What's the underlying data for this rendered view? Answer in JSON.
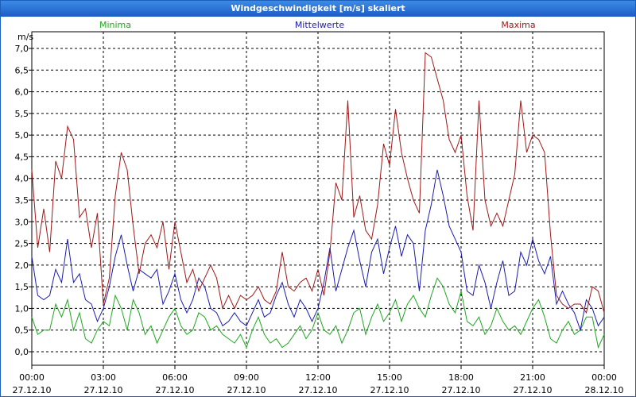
{
  "chart_data": {
    "type": "line",
    "title": "Windgeschwindigkeit [m/s] skaliert",
    "ylabel": "m/s",
    "ylim": [
      0,
      7
    ],
    "yticks": [
      "0,0",
      "0,5",
      "1,0",
      "1,5",
      "2,0",
      "2,5",
      "3,0",
      "3,5",
      "4,0",
      "4,5",
      "5,0",
      "5,5",
      "6,0",
      "6,5",
      "7,0"
    ],
    "xticks": [
      {
        "time": "00:00",
        "date": "27.12.10"
      },
      {
        "time": "03:00",
        "date": "27.12.10"
      },
      {
        "time": "06:00",
        "date": "27.12.10"
      },
      {
        "time": "09:00",
        "date": "27.12.10"
      },
      {
        "time": "12:00",
        "date": "27.12.10"
      },
      {
        "time": "15:00",
        "date": "27.12.10"
      },
      {
        "time": "18:00",
        "date": "27.12.10"
      },
      {
        "time": "21:00",
        "date": "27.12.10"
      },
      {
        "time": "00:00",
        "date": "28.12.10"
      }
    ],
    "x_hours": [
      0,
      0.25,
      0.5,
      0.75,
      1,
      1.25,
      1.5,
      1.75,
      2,
      2.25,
      2.5,
      2.75,
      3,
      3.25,
      3.5,
      3.75,
      4,
      4.25,
      4.5,
      4.75,
      5,
      5.25,
      5.5,
      5.75,
      6,
      6.25,
      6.5,
      6.75,
      7,
      7.25,
      7.5,
      7.75,
      8,
      8.25,
      8.5,
      8.75,
      9,
      9.25,
      9.5,
      9.75,
      10,
      10.25,
      10.5,
      10.75,
      11,
      11.25,
      11.5,
      11.75,
      12,
      12.25,
      12.5,
      12.75,
      13,
      13.25,
      13.5,
      13.75,
      14,
      14.25,
      14.5,
      14.75,
      15,
      15.25,
      15.5,
      15.75,
      16,
      16.25,
      16.5,
      16.75,
      17,
      17.25,
      17.5,
      17.75,
      18,
      18.25,
      18.5,
      18.75,
      19,
      19.25,
      19.5,
      19.75,
      20,
      20.25,
      20.5,
      20.75,
      21,
      21.25,
      21.5,
      21.75,
      22,
      22.25,
      22.5,
      22.75,
      23,
      23.25,
      23.5,
      23.75,
      24
    ],
    "series": [
      {
        "name": "Minima",
        "color": "#1ea81e",
        "values": [
          0.8,
          0.4,
          0.5,
          0.5,
          1.1,
          0.8,
          1.2,
          0.5,
          0.9,
          0.3,
          0.2,
          0.5,
          0.7,
          0.6,
          1.3,
          1.0,
          0.5,
          1.2,
          0.9,
          0.4,
          0.6,
          0.2,
          0.5,
          0.8,
          1.0,
          0.6,
          0.4,
          0.5,
          0.9,
          0.8,
          0.5,
          0.6,
          0.4,
          0.3,
          0.2,
          0.4,
          0.1,
          0.5,
          0.8,
          0.4,
          0.2,
          0.3,
          0.1,
          0.2,
          0.4,
          0.6,
          0.3,
          0.5,
          0.9,
          0.5,
          0.4,
          0.6,
          0.2,
          0.5,
          0.9,
          1.0,
          0.4,
          0.8,
          1.1,
          0.7,
          0.9,
          1.2,
          0.7,
          1.1,
          1.3,
          1.0,
          0.8,
          1.3,
          1.7,
          1.5,
          1.1,
          0.9,
          1.4,
          0.7,
          0.6,
          0.8,
          0.4,
          0.6,
          1.0,
          0.7,
          0.5,
          0.6,
          0.4,
          0.7,
          1.0,
          1.2,
          0.8,
          0.3,
          0.2,
          0.5,
          0.7,
          0.4,
          0.5,
          0.8,
          0.8,
          0.1,
          0.4
        ]
      },
      {
        "name": "Mittelwerte",
        "color": "#1c1cb0",
        "values": [
          2.2,
          1.3,
          1.2,
          1.3,
          1.9,
          1.6,
          2.6,
          1.6,
          1.8,
          1.2,
          1.1,
          0.7,
          1.0,
          1.5,
          2.2,
          2.7,
          2.0,
          1.4,
          1.9,
          1.8,
          1.7,
          1.9,
          1.1,
          1.4,
          1.8,
          1.2,
          0.9,
          1.2,
          1.7,
          1.5,
          1.0,
          0.9,
          0.6,
          0.7,
          0.9,
          0.7,
          0.6,
          0.9,
          1.2,
          0.8,
          0.9,
          1.3,
          1.6,
          1.1,
          0.8,
          1.2,
          1.0,
          0.7,
          1.0,
          1.6,
          2.4,
          1.4,
          1.9,
          2.4,
          2.8,
          2.1,
          1.5,
          2.3,
          2.6,
          1.8,
          2.4,
          2.9,
          2.2,
          2.7,
          2.5,
          1.4,
          2.8,
          3.4,
          4.2,
          3.6,
          2.9,
          2.6,
          2.3,
          1.4,
          1.3,
          2.0,
          1.6,
          1.0,
          1.6,
          2.1,
          1.3,
          1.4,
          2.3,
          2.0,
          2.6,
          2.1,
          1.8,
          2.2,
          1.1,
          1.4,
          1.1,
          0.9,
          0.5,
          1.2,
          1.0,
          0.6,
          0.8
        ]
      },
      {
        "name": "Maxima",
        "color": "#a01818",
        "values": [
          4.2,
          2.4,
          3.3,
          2.3,
          4.4,
          4.0,
          5.2,
          4.9,
          3.1,
          3.3,
          2.4,
          3.2,
          1.1,
          1.7,
          3.6,
          4.6,
          4.2,
          2.9,
          1.8,
          2.5,
          2.7,
          2.4,
          3.0,
          1.9,
          3.0,
          2.3,
          1.6,
          1.9,
          1.4,
          1.7,
          2.0,
          1.7,
          1.0,
          1.3,
          1.0,
          1.3,
          1.2,
          1.3,
          1.5,
          1.2,
          1.1,
          1.4,
          2.3,
          1.5,
          1.4,
          1.6,
          1.7,
          1.4,
          1.9,
          1.3,
          2.3,
          3.9,
          3.5,
          5.8,
          3.1,
          3.6,
          2.8,
          2.6,
          3.4,
          4.8,
          4.3,
          5.6,
          4.6,
          4.0,
          3.5,
          3.2,
          6.9,
          6.8,
          6.3,
          5.8,
          4.9,
          4.6,
          5.0,
          3.6,
          2.8,
          5.8,
          3.5,
          2.9,
          3.2,
          2.9,
          3.5,
          4.1,
          5.8,
          4.6,
          5.0,
          4.9,
          4.6,
          2.7,
          1.3,
          1.1,
          1.0,
          1.1,
          1.1,
          0.9,
          1.5,
          1.4,
          0.9
        ]
      }
    ]
  }
}
